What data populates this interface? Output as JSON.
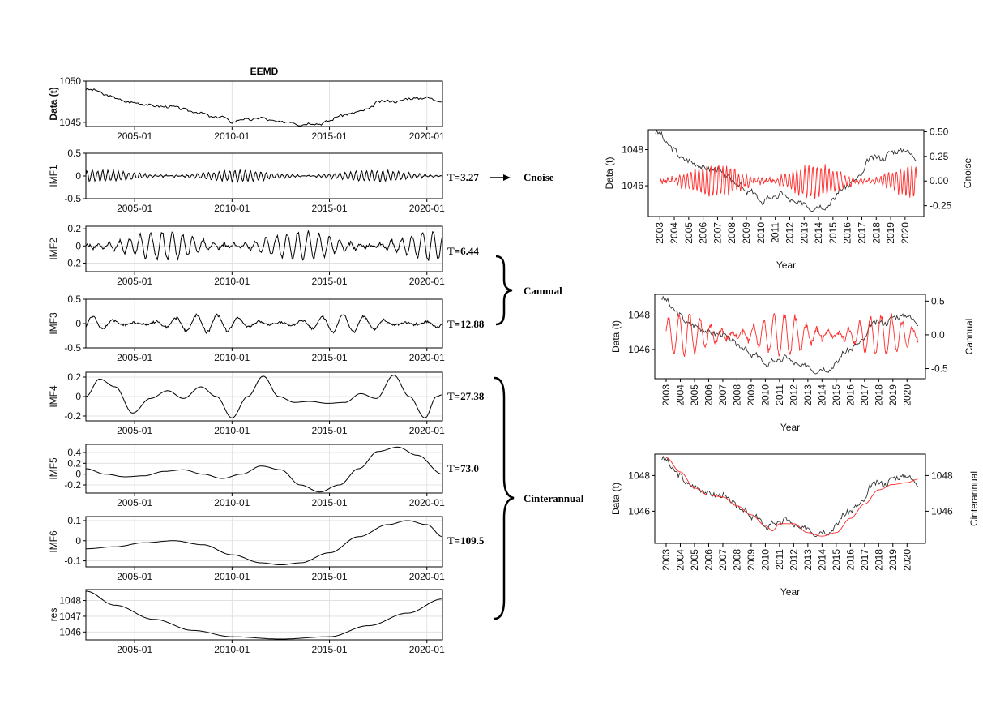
{
  "figure_title": "EEMD",
  "chart_data": [
    {
      "id": "data",
      "type": "line",
      "ylabel": "Data (t)",
      "yticks": [
        1045,
        1050
      ],
      "ylim": [
        1044.5,
        1050
      ],
      "xticks": [
        "2005-01",
        "2010-01",
        "2015-01",
        "2020-01"
      ],
      "xlim": [
        2002.5,
        2020.8
      ],
      "grid": true,
      "x": [
        2002.5,
        2003.0,
        2003.5,
        2004.0,
        2004.5,
        2005.0,
        2005.5,
        2006.0,
        2006.5,
        2007.0,
        2007.5,
        2008.0,
        2008.5,
        2009.0,
        2009.5,
        2010.0,
        2010.5,
        2011.0,
        2011.5,
        2012.0,
        2012.5,
        2013.0,
        2013.5,
        2014.0,
        2014.5,
        2015.0,
        2015.5,
        2016.0,
        2016.5,
        2017.0,
        2017.5,
        2018.0,
        2018.5,
        2019.0,
        2019.5,
        2020.0,
        2020.5,
        2020.8
      ],
      "values": [
        1049.0,
        1048.9,
        1048.3,
        1048.0,
        1047.5,
        1047.4,
        1047.2,
        1047.0,
        1046.9,
        1046.9,
        1046.6,
        1046.3,
        1046.1,
        1045.6,
        1045.7,
        1045.0,
        1045.4,
        1045.3,
        1045.6,
        1045.2,
        1045.0,
        1045.1,
        1044.7,
        1044.9,
        1044.8,
        1045.2,
        1045.8,
        1046.0,
        1046.3,
        1046.6,
        1047.5,
        1047.6,
        1047.5,
        1047.9,
        1047.9,
        1048.0,
        1047.7,
        1047.5
      ],
      "noise_amp": 0.15
    },
    {
      "id": "imf1",
      "type": "line",
      "ylabel": "IMF1",
      "yticks": [
        -0.5,
        0,
        0.5
      ],
      "ylim": [
        -0.5,
        0.5
      ],
      "xticks": [
        "2005-01",
        "2010-01",
        "2015-01",
        "2020-01"
      ],
      "xlim": [
        2002.5,
        2020.8
      ],
      "grid": true,
      "period_months": 3.27,
      "amp": 0.12,
      "seed": 11
    },
    {
      "id": "imf2",
      "type": "line",
      "ylabel": "IMF2",
      "yticks": [
        -0.2,
        -0.0,
        0.2
      ],
      "ylim": [
        -0.3,
        0.23
      ],
      "xticks": [
        "2005-01",
        "2010-01",
        "2015-01",
        "2020-01"
      ],
      "xlim": [
        2002.5,
        2020.8
      ],
      "grid": true,
      "period_months": 6.44,
      "amp": 0.16,
      "seed": 23
    },
    {
      "id": "imf3",
      "type": "line",
      "ylabel": "IMF3",
      "yticks": [
        -0.5,
        0,
        0.5
      ],
      "ylim": [
        -0.5,
        0.5
      ],
      "xticks": [
        "2005-01",
        "2010-01",
        "2015-01",
        "2020-01"
      ],
      "xlim": [
        2002.5,
        2020.8
      ],
      "grid": true,
      "period_months": 12.88,
      "amp": 0.18,
      "seed": 5
    },
    {
      "id": "imf4",
      "type": "line",
      "ylabel": "IMF4",
      "yticks": [
        -0.2,
        0,
        0.2
      ],
      "ylim": [
        -0.25,
        0.25
      ],
      "xticks": [
        "2005-01",
        "2010-01",
        "2015-01",
        "2020-01"
      ],
      "xlim": [
        2002.5,
        2020.8
      ],
      "grid": true,
      "x": [
        2002.5,
        2003.2,
        2004.0,
        2004.9,
        2005.8,
        2006.7,
        2007.5,
        2008.4,
        2009.2,
        2010.0,
        2010.8,
        2011.6,
        2012.4,
        2013.2,
        2014.0,
        2014.9,
        2015.8,
        2016.6,
        2017.4,
        2018.3,
        2019.1,
        2019.9,
        2020.5,
        2020.8
      ],
      "values": [
        0.0,
        0.18,
        0.1,
        -0.17,
        -0.02,
        0.06,
        -0.02,
        0.1,
        0.0,
        -0.22,
        0.0,
        0.21,
        0.0,
        -0.06,
        -0.05,
        -0.07,
        -0.06,
        0.03,
        -0.02,
        0.22,
        0.0,
        -0.22,
        0.0,
        0.02
      ]
    },
    {
      "id": "imf5",
      "type": "line",
      "ylabel": "IMF5",
      "yticks": [
        -0.2,
        0,
        0.2,
        0.4
      ],
      "ylim": [
        -0.35,
        0.55
      ],
      "xticks": [
        "2005-01",
        "2010-01",
        "2015-01",
        "2020-01"
      ],
      "xlim": [
        2002.5,
        2020.8
      ],
      "grid": true,
      "x": [
        2002.5,
        2003.5,
        2004.5,
        2005.5,
        2006.5,
        2007.5,
        2008.5,
        2009.5,
        2010.5,
        2011.5,
        2012.5,
        2013.5,
        2014.5,
        2015.5,
        2016.5,
        2017.5,
        2018.5,
        2019.5,
        2020.8
      ],
      "values": [
        0.1,
        0.0,
        -0.05,
        -0.03,
        0.05,
        0.08,
        0.0,
        -0.08,
        0.0,
        0.15,
        0.08,
        -0.2,
        -0.33,
        -0.2,
        0.1,
        0.42,
        0.5,
        0.35,
        0.0
      ]
    },
    {
      "id": "imf6",
      "type": "line",
      "ylabel": "IMF6",
      "yticks": [
        -0.1,
        0,
        0.1
      ],
      "ylim": [
        -0.13,
        0.12
      ],
      "xticks": [
        "2005-01",
        "2010-01",
        "2015-01",
        "2020-01"
      ],
      "xlim": [
        2002.5,
        2020.8
      ],
      "grid": true,
      "x": [
        2002.5,
        2004.0,
        2005.5,
        2007.0,
        2008.5,
        2010.0,
        2011.5,
        2012.5,
        2013.5,
        2015.0,
        2016.5,
        2018.0,
        2019.0,
        2020.0,
        2020.8
      ],
      "values": [
        -0.04,
        -0.03,
        -0.01,
        0.0,
        -0.02,
        -0.07,
        -0.11,
        -0.12,
        -0.11,
        -0.06,
        0.02,
        0.08,
        0.1,
        0.08,
        0.02
      ]
    },
    {
      "id": "res",
      "type": "line",
      "ylabel": "res",
      "yticks": [
        1046,
        1047,
        1048
      ],
      "ylim": [
        1045.5,
        1048.7
      ],
      "xticks": [
        "2005-01",
        "2010-01",
        "2015-01",
        "2020-01"
      ],
      "xlim": [
        2002.5,
        2020.8
      ],
      "grid": true,
      "x": [
        2002.5,
        2004.0,
        2006.0,
        2008.0,
        2010.0,
        2012.5,
        2015.0,
        2017.0,
        2019.0,
        2020.8
      ],
      "values": [
        1048.6,
        1047.7,
        1046.8,
        1046.1,
        1045.7,
        1045.55,
        1045.7,
        1046.4,
        1047.2,
        1048.1
      ]
    },
    {
      "id": "right-cnoise",
      "type": "line",
      "ylabel": "Data (t)",
      "y2label": "Cnoise",
      "yticks": [
        1046,
        1048
      ],
      "ylim": [
        1044.3,
        1049.1
      ],
      "y2ticks": [
        "0.50",
        "0.25",
        "0.00",
        "-0.25"
      ],
      "y2lim": [
        -0.36,
        0.52
      ],
      "xticks": [
        "2003",
        "2004",
        "2005",
        "2006",
        "2007",
        "2008",
        "2009",
        "2010",
        "2011",
        "2012",
        "2013",
        "2014",
        "2015",
        "2016",
        "2017",
        "2018",
        "2019",
        "2020"
      ],
      "xlim": [
        2002.2,
        2021.3
      ],
      "xlabel": "Year",
      "grid": false,
      "series": [
        {
          "name": "data",
          "color": "#333333",
          "ref": "data"
        },
        {
          "name": "Cnoise",
          "color": "#ff2a2a",
          "period_months": 3.27,
          "amp": 0.16,
          "seed": 77
        }
      ]
    },
    {
      "id": "right-cannual",
      "type": "line",
      "ylabel": "Data (t)",
      "y2label": "Cannual",
      "yticks": [
        1046,
        1048
      ],
      "ylim": [
        1044.3,
        1049.2
      ],
      "y2ticks": [
        "0.5",
        "0.0",
        "-0.5"
      ],
      "y2lim": [
        -0.65,
        0.6
      ],
      "xticks": [
        "2003",
        "2004",
        "2005",
        "2006",
        "2007",
        "2008",
        "2009",
        "2010",
        "2011",
        "2012",
        "2013",
        "2014",
        "2015",
        "2016",
        "2017",
        "2018",
        "2019",
        "2020"
      ],
      "xlim": [
        2002.2,
        2021.3
      ],
      "xlabel": "Year",
      "grid": false,
      "series": [
        {
          "name": "data",
          "color": "#333333",
          "ref": "data"
        },
        {
          "name": "Cannual",
          "color": "#ff2a2a",
          "period_months": 9.0,
          "amp": 0.3,
          "seed": 41
        }
      ]
    },
    {
      "id": "right-cinterannual",
      "type": "line",
      "ylabel": "Data (t)",
      "y2label": "Cinterannual",
      "yticks": [
        1046,
        1048
      ],
      "ylim": [
        1044.2,
        1049.2
      ],
      "y2ticks": [
        "1048",
        "1046"
      ],
      "y2lim": [
        1044.2,
        1049.2
      ],
      "xticks": [
        "2003",
        "2004",
        "2005",
        "2006",
        "2007",
        "2008",
        "2009",
        "2010",
        "2011",
        "2012",
        "2013",
        "2014",
        "2015",
        "2016",
        "2017",
        "2018",
        "2019",
        "2020"
      ],
      "xlim": [
        2002.2,
        2021.3
      ],
      "xlabel": "Year",
      "grid": false,
      "series": [
        {
          "name": "data",
          "color": "#333333",
          "ref": "data"
        },
        {
          "name": "Cinterannual",
          "color": "#ff2a2a",
          "x": [
            2003.0,
            2004.0,
            2005.0,
            2006.0,
            2007.0,
            2008.0,
            2009.0,
            2010.0,
            2010.5,
            2011.0,
            2012.0,
            2013.0,
            2014.0,
            2015.0,
            2016.0,
            2017.0,
            2018.0,
            2019.0,
            2020.0,
            2020.8
          ],
          "values": [
            1049.0,
            1048.2,
            1047.3,
            1046.9,
            1046.8,
            1046.3,
            1045.8,
            1045.2,
            1044.9,
            1045.3,
            1045.3,
            1044.8,
            1044.6,
            1044.8,
            1045.6,
            1046.4,
            1047.2,
            1047.5,
            1047.6,
            1047.8
          ]
        }
      ]
    }
  ],
  "annotations": {
    "imf1_period": "T=3.27",
    "imf2_period": "T=6.44",
    "imf3_period": "T=12.88",
    "imf4_period": "T=27.38",
    "imf5_period": "T=73.0",
    "imf6_period": "T=109.5",
    "cnoise": "Cnoise",
    "cannual": "Cannual",
    "cinterannual": "Cinterannual"
  }
}
